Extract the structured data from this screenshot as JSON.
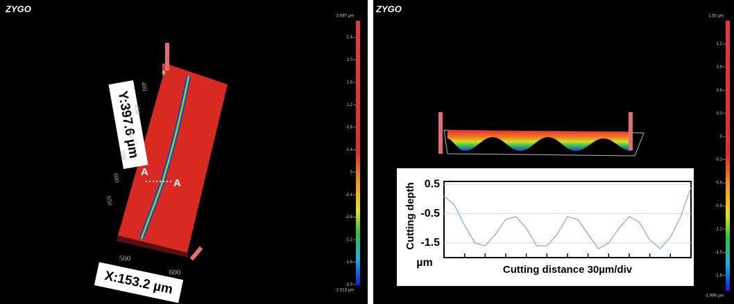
{
  "left_panel": {
    "logo": "ZYGO",
    "y_label": "Y:397.6 µm",
    "x_label": "X:153.2 µm",
    "section_start": "A",
    "section_end": "A",
    "surface_y_ticks": [
      "400",
      "450",
      "500",
      "550",
      "600",
      "650"
    ],
    "surface_x_ticks": [
      "500",
      "600"
    ],
    "colorbar": {
      "max_label": "2.697 µm",
      "min_label": "-2.013 µm",
      "lim": [
        -2.013,
        2.697
      ],
      "ticks": [
        {
          "value": 2.4,
          "label": "2.4"
        },
        {
          "value": 2,
          "label": "2.0"
        },
        {
          "value": 1.6,
          "label": "1.6"
        },
        {
          "value": 1.2,
          "label": "1.2"
        },
        {
          "value": 0.8,
          "label": "0.8"
        },
        {
          "value": 0.4,
          "label": "0.4"
        },
        0,
        {
          "value": -0.4,
          "label": "-0.4"
        },
        {
          "value": -0.8,
          "label": "-0.8"
        },
        {
          "value": -1.2,
          "label": "-1.2"
        },
        {
          "value": -1.6,
          "label": "-1.6"
        },
        {
          "value": -2,
          "label": "-2.0"
        }
      ]
    }
  },
  "right_panel": {
    "logo": "ZYGO",
    "colorbar": {
      "max_label": "1.50 µm",
      "min_label": "-1.999 µm",
      "lim": [
        -1.999,
        1.5
      ],
      "ticks": [
        1.2,
        0.9,
        0.6,
        0.3,
        0,
        -0.3,
        -0.6,
        -0.9,
        -1.2,
        -1.5,
        -1.8
      ]
    },
    "chart_data": {
      "type": "line",
      "y_label": "Cutting depth",
      "y_unit": "µm",
      "x_label": "Cutting distance 30µm/div",
      "x": [
        0,
        0.5,
        1,
        1.5,
        2,
        2.5,
        3,
        3.5,
        4,
        4.5,
        5,
        5.5,
        6,
        6.5,
        7,
        7.5,
        8,
        8.5,
        9,
        9.5,
        10,
        10.5,
        11,
        11.5,
        12
      ],
      "values": [
        0.1,
        -0.2,
        -0.9,
        -1.5,
        -1.6,
        -1.2,
        -0.7,
        -0.6,
        -1.0,
        -1.6,
        -1.6,
        -1.2,
        -0.6,
        -0.7,
        -1.2,
        -1.7,
        -1.5,
        -1.0,
        -0.6,
        -0.8,
        -1.4,
        -1.7,
        -1.3,
        -0.6,
        0.4
      ],
      "color": "#8fb0d8",
      "xlim": [
        0,
        12
      ],
      "xticks": [
        0,
        1,
        2,
        3,
        4,
        5,
        6,
        7,
        8,
        9,
        10,
        11,
        12
      ],
      "ylim": [
        -2,
        0.6
      ],
      "yticks": [
        0.5,
        -0.5,
        -1.5
      ]
    }
  }
}
